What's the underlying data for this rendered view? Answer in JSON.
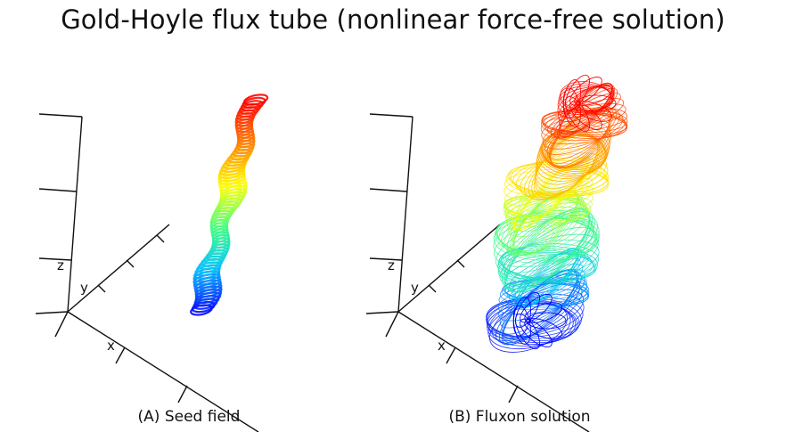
{
  "title": "Gold-Hoyle flux tube (nonlinear force-free solution)",
  "panels": [
    {
      "caption": "(A) Seed field",
      "axes": {
        "x": "x",
        "y": "y",
        "z": "z"
      },
      "colormap": [
        "#0000ff",
        "#00c0ff",
        "#40ff80",
        "#ffff00",
        "#ff8000",
        "#ff0000"
      ]
    },
    {
      "caption": "(B) Fluxon solution",
      "axes": {
        "x": "x",
        "y": "y",
        "z": "z"
      },
      "colormap": [
        "#0000ff",
        "#00c0ff",
        "#40ff80",
        "#ffff00",
        "#ff8000",
        "#ff0000"
      ]
    }
  ]
}
